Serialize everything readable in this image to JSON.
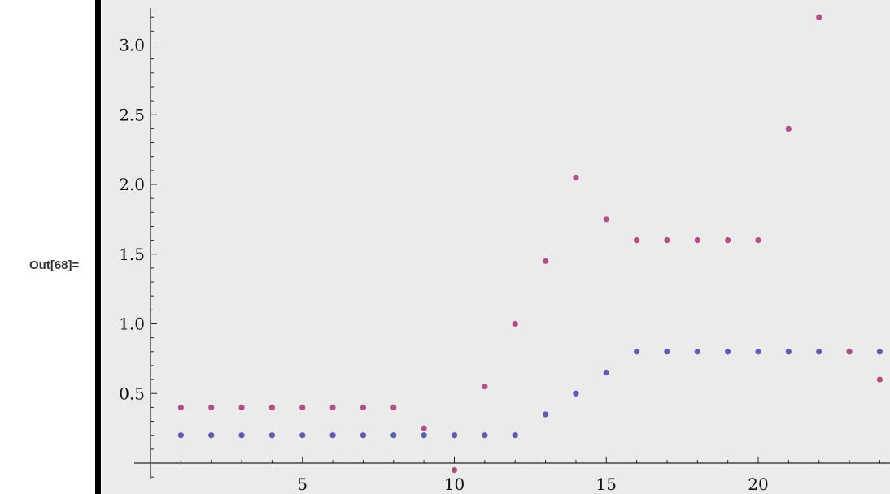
{
  "output": {
    "label": "Out[68]="
  },
  "colors": {
    "background": "#ebebeb",
    "series1": "#5d5db2",
    "series2": "#b34e86",
    "axis": "#222222"
  },
  "chart_data": {
    "type": "scatter",
    "title": "",
    "xlabel": "",
    "ylabel": "",
    "xlim": [
      0,
      24
    ],
    "ylim": [
      -0.25,
      3.3
    ],
    "x_ticks": [
      5,
      10,
      15,
      20
    ],
    "y_ticks": [
      0.5,
      1.0,
      1.5,
      2.0,
      2.5,
      3.0
    ],
    "x_tick_labels": [
      "5",
      "10",
      "15",
      "20"
    ],
    "y_tick_labels": [
      "0.5",
      "1.0",
      "1.5",
      "2.0",
      "2.5",
      "3.0"
    ],
    "grid": false,
    "series": [
      {
        "color": "#5d5db2",
        "points": [
          [
            1,
            0.2
          ],
          [
            2,
            0.2
          ],
          [
            3,
            0.2
          ],
          [
            4,
            0.2
          ],
          [
            5,
            0.2
          ],
          [
            6,
            0.2
          ],
          [
            7,
            0.2
          ],
          [
            8,
            0.2
          ],
          [
            9,
            0.2
          ],
          [
            10,
            0.2
          ],
          [
            11,
            0.2
          ],
          [
            12,
            0.2
          ],
          [
            13,
            0.35
          ],
          [
            14,
            0.5
          ],
          [
            15,
            0.65
          ],
          [
            16,
            0.8
          ],
          [
            17,
            0.8
          ],
          [
            18,
            0.8
          ],
          [
            19,
            0.8
          ],
          [
            20,
            0.8
          ],
          [
            21,
            0.8
          ],
          [
            22,
            0.8
          ],
          [
            23,
            0.8
          ],
          [
            24,
            0.8
          ]
        ]
      },
      {
        "color": "#b34e86",
        "points": [
          [
            1,
            0.4
          ],
          [
            2,
            0.4
          ],
          [
            3,
            0.4
          ],
          [
            4,
            0.4
          ],
          [
            5,
            0.4
          ],
          [
            6,
            0.4
          ],
          [
            7,
            0.4
          ],
          [
            8,
            0.4
          ],
          [
            9,
            0.25
          ],
          [
            10,
            -0.05
          ],
          [
            11,
            0.55
          ],
          [
            12,
            1.0
          ],
          [
            13,
            1.45
          ],
          [
            14,
            2.05
          ],
          [
            15,
            1.75
          ],
          [
            16,
            1.6
          ],
          [
            17,
            1.6
          ],
          [
            18,
            1.6
          ],
          [
            19,
            1.6
          ],
          [
            20,
            1.6
          ],
          [
            21,
            2.4
          ],
          [
            22,
            3.2
          ],
          [
            23,
            0.8
          ],
          [
            24,
            0.6
          ]
        ]
      }
    ]
  }
}
